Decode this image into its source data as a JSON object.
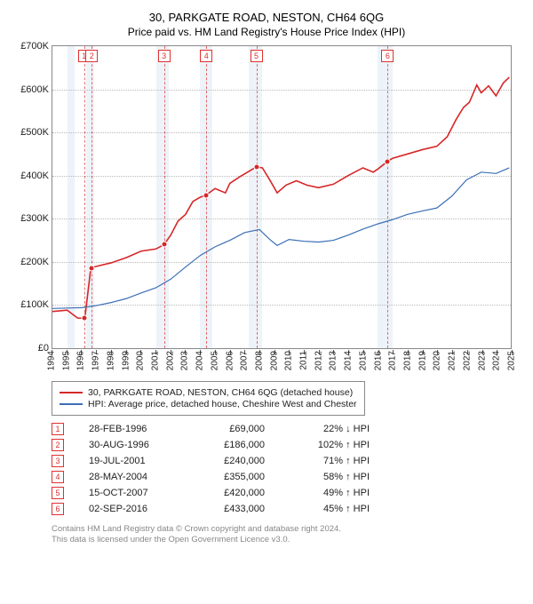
{
  "title": "30, PARKGATE ROAD, NESTON, CH64 6QG",
  "subtitle": "Price paid vs. HM Land Registry's House Price Index (HPI)",
  "chart": {
    "type": "line",
    "x_domain": [
      1994,
      2025
    ],
    "y_domain": [
      0,
      700000
    ],
    "y_ticks": [
      0,
      100000,
      200000,
      300000,
      400000,
      500000,
      600000,
      700000
    ],
    "y_tick_labels": [
      "£0",
      "£100K",
      "£200K",
      "£300K",
      "£400K",
      "£500K",
      "£600K",
      "£700K"
    ],
    "x_ticks": [
      1994,
      1995,
      1996,
      1997,
      1998,
      1999,
      2000,
      2001,
      2002,
      2003,
      2004,
      2005,
      2006,
      2007,
      2008,
      2009,
      2010,
      2011,
      2012,
      2013,
      2014,
      2015,
      2016,
      2017,
      2018,
      2019,
      2020,
      2021,
      2022,
      2023,
      2024,
      2025
    ],
    "grid_color": "#bbbbbb",
    "border_color": "#888888",
    "recession_bands": [
      {
        "from": 1995.0,
        "to": 1995.5,
        "color": "#dfeaf4"
      },
      {
        "from": 1996.3,
        "to": 1996.8,
        "color": "#dfeaf4"
      },
      {
        "from": 2001.0,
        "to": 2001.9,
        "color": "#dfeaf4"
      },
      {
        "from": 2004.0,
        "to": 2004.8,
        "color": "#dfeaf4"
      },
      {
        "from": 2007.3,
        "to": 2008.2,
        "color": "#dfeaf4"
      },
      {
        "from": 2016.0,
        "to": 2017.0,
        "color": "#dfeaf4"
      }
    ],
    "series": [
      {
        "name": "property",
        "label": "30, PARKGATE ROAD, NESTON, CH64 6QG (detached house)",
        "color": "#d62728",
        "width": 1.6,
        "points": [
          [
            1994.0,
            85000
          ],
          [
            1995.0,
            88000
          ],
          [
            1995.7,
            70000
          ],
          [
            1996.15,
            69000
          ],
          [
            1996.2,
            72000
          ],
          [
            1996.6,
            186000
          ],
          [
            1997.0,
            190000
          ],
          [
            1998.0,
            198000
          ],
          [
            1999.0,
            210000
          ],
          [
            2000.0,
            225000
          ],
          [
            2001.0,
            230000
          ],
          [
            2001.55,
            240000
          ],
          [
            2002.0,
            262000
          ],
          [
            2002.5,
            295000
          ],
          [
            2003.0,
            310000
          ],
          [
            2003.5,
            340000
          ],
          [
            2004.0,
            350000
          ],
          [
            2004.4,
            355000
          ],
          [
            2005.0,
            370000
          ],
          [
            2005.7,
            360000
          ],
          [
            2006.0,
            382000
          ],
          [
            2006.7,
            398000
          ],
          [
            2007.3,
            410000
          ],
          [
            2007.79,
            420000
          ],
          [
            2008.2,
            418000
          ],
          [
            2008.7,
            390000
          ],
          [
            2009.2,
            360000
          ],
          [
            2009.8,
            378000
          ],
          [
            2010.5,
            388000
          ],
          [
            2011.2,
            378000
          ],
          [
            2012.0,
            372000
          ],
          [
            2013.0,
            380000
          ],
          [
            2014.0,
            400000
          ],
          [
            2015.0,
            418000
          ],
          [
            2015.7,
            408000
          ],
          [
            2016.0,
            415000
          ],
          [
            2016.67,
            433000
          ],
          [
            2017.0,
            440000
          ],
          [
            2018.0,
            450000
          ],
          [
            2019.0,
            460000
          ],
          [
            2020.0,
            468000
          ],
          [
            2020.7,
            490000
          ],
          [
            2021.3,
            530000
          ],
          [
            2021.8,
            558000
          ],
          [
            2022.2,
            570000
          ],
          [
            2022.7,
            610000
          ],
          [
            2023.0,
            592000
          ],
          [
            2023.5,
            608000
          ],
          [
            2024.0,
            585000
          ],
          [
            2024.5,
            615000
          ],
          [
            2024.9,
            628000
          ]
        ]
      },
      {
        "name": "hpi",
        "label": "HPI: Average price, detached house, Cheshire West and Chester",
        "color": "#3b6fb6",
        "width": 1.2,
        "points": [
          [
            1994.0,
            92000
          ],
          [
            1995.0,
            93000
          ],
          [
            1996.0,
            94000
          ],
          [
            1997.0,
            99000
          ],
          [
            1998.0,
            106000
          ],
          [
            1999.0,
            115000
          ],
          [
            2000.0,
            128000
          ],
          [
            2001.0,
            140000
          ],
          [
            2002.0,
            160000
          ],
          [
            2003.0,
            188000
          ],
          [
            2004.0,
            215000
          ],
          [
            2005.0,
            235000
          ],
          [
            2006.0,
            250000
          ],
          [
            2007.0,
            268000
          ],
          [
            2008.0,
            275000
          ],
          [
            2008.7,
            252000
          ],
          [
            2009.2,
            238000
          ],
          [
            2010.0,
            252000
          ],
          [
            2011.0,
            248000
          ],
          [
            2012.0,
            246000
          ],
          [
            2013.0,
            250000
          ],
          [
            2014.0,
            262000
          ],
          [
            2015.0,
            276000
          ],
          [
            2016.0,
            288000
          ],
          [
            2017.0,
            298000
          ],
          [
            2018.0,
            310000
          ],
          [
            2019.0,
            318000
          ],
          [
            2020.0,
            325000
          ],
          [
            2021.0,
            352000
          ],
          [
            2022.0,
            390000
          ],
          [
            2023.0,
            408000
          ],
          [
            2024.0,
            405000
          ],
          [
            2024.9,
            418000
          ]
        ]
      }
    ],
    "sale_markers": [
      {
        "n": 1,
        "x": 1996.15,
        "y": 69000
      },
      {
        "n": 2,
        "x": 1996.66,
        "y": 186000
      },
      {
        "n": 3,
        "x": 2001.55,
        "y": 240000
      },
      {
        "n": 4,
        "x": 2004.41,
        "y": 355000
      },
      {
        "n": 5,
        "x": 2007.79,
        "y": 420000
      },
      {
        "n": 6,
        "x": 2016.67,
        "y": 433000
      }
    ]
  },
  "legend": {
    "items": [
      {
        "color": "#d62728",
        "label": "30, PARKGATE ROAD, NESTON, CH64 6QG (detached house)"
      },
      {
        "color": "#3b6fb6",
        "label": "HPI: Average price, detached house, Cheshire West and Chester"
      }
    ]
  },
  "sales": [
    {
      "n": 1,
      "date": "28-FEB-1996",
      "price": "£69,000",
      "delta": "22% ↓ HPI"
    },
    {
      "n": 2,
      "date": "30-AUG-1996",
      "price": "£186,000",
      "delta": "102% ↑ HPI"
    },
    {
      "n": 3,
      "date": "19-JUL-2001",
      "price": "£240,000",
      "delta": "71% ↑ HPI"
    },
    {
      "n": 4,
      "date": "28-MAY-2004",
      "price": "£355,000",
      "delta": "58% ↑ HPI"
    },
    {
      "n": 5,
      "date": "15-OCT-2007",
      "price": "£420,000",
      "delta": "49% ↑ HPI"
    },
    {
      "n": 6,
      "date": "02-SEP-2016",
      "price": "£433,000",
      "delta": "45% ↑ HPI"
    }
  ],
  "footer": {
    "line1": "Contains HM Land Registry data © Crown copyright and database right 2024.",
    "line2": "This data is licensed under the Open Government Licence v3.0."
  }
}
